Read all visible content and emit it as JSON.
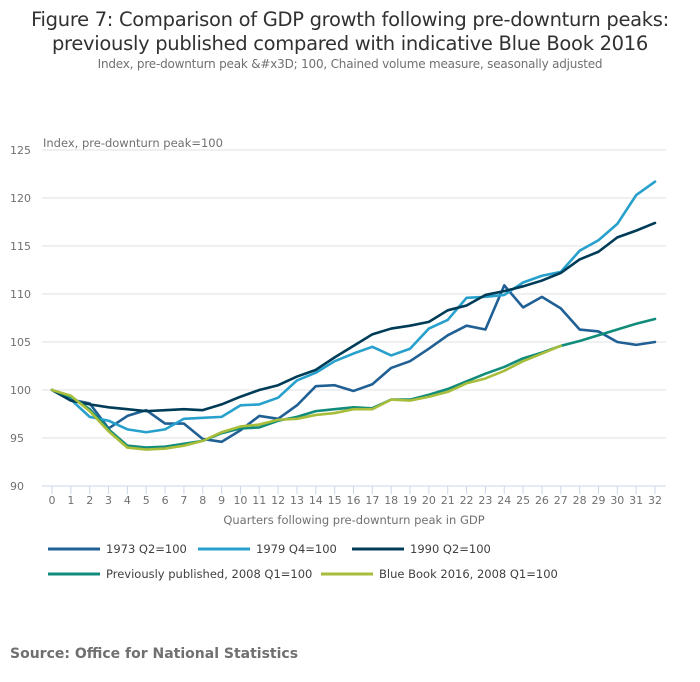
{
  "header": {
    "title_line1": "Figure 7: Comparison of GDP growth following pre-downturn peaks:",
    "title_line2": "previously published compared with indicative Blue Book 2016",
    "subtitle": "Index, pre-downturn peak &#x3D; 100, Chained volume measure, seasonally adjusted"
  },
  "footer": {
    "source": "Source: Office for National Statistics"
  },
  "chart_data": {
    "type": "line",
    "title": "Figure 7: Comparison of GDP growth following pre-downturn peaks: previously published compared with indicative Blue Book 2016",
    "subtitle": "Index, pre-downturn peak &#x3D; 100, Chained volume measure, seasonally adjusted",
    "xlabel": "Quarters following pre-downturn peak in GDP",
    "ylabel": "Index, pre-downturn peak=100",
    "ylim": [
      90,
      125
    ],
    "yticks": [
      90,
      95,
      100,
      105,
      110,
      115,
      120,
      125
    ],
    "x": [
      0,
      1,
      2,
      3,
      4,
      5,
      6,
      7,
      8,
      9,
      10,
      11,
      12,
      13,
      14,
      15,
      16,
      17,
      18,
      19,
      20,
      21,
      22,
      23,
      24,
      25,
      26,
      27,
      28,
      29,
      30,
      31,
      32
    ],
    "grid": true,
    "legend_position": "bottom",
    "series": [
      {
        "name": "1973 Q2=100",
        "color": "#206095",
        "values": [
          100,
          99.0,
          98.6,
          96.0,
          97.3,
          97.9,
          96.5,
          96.5,
          94.9,
          94.6,
          95.8,
          97.3,
          97.0,
          98.4,
          100.4,
          100.5,
          99.9,
          100.6,
          102.3,
          103.0,
          104.3,
          105.7,
          106.7,
          106.3,
          110.9,
          108.6,
          109.7,
          108.5,
          106.3,
          106.1,
          105.0,
          104.7,
          105.0
        ]
      },
      {
        "name": "1979 Q4=100",
        "color": "#27a0cc",
        "values": [
          100,
          99.0,
          97.2,
          96.8,
          95.9,
          95.6,
          95.9,
          97.0,
          97.1,
          97.2,
          98.4,
          98.5,
          99.2,
          101.0,
          101.8,
          103.0,
          103.8,
          104.5,
          103.6,
          104.3,
          106.4,
          107.3,
          109.6,
          109.7,
          109.9,
          111.2,
          111.9,
          112.3,
          114.5,
          115.6,
          117.3,
          120.3,
          121.7
        ]
      },
      {
        "name": "1990 Q2=100",
        "color": "#003c57",
        "values": [
          100,
          98.9,
          98.5,
          98.2,
          98.0,
          97.8,
          97.9,
          98.0,
          97.9,
          98.5,
          99.3,
          100.0,
          100.5,
          101.4,
          102.1,
          103.4,
          104.6,
          105.8,
          106.4,
          106.7,
          107.1,
          108.3,
          108.8,
          109.9,
          110.3,
          110.8,
          111.4,
          112.2,
          113.6,
          114.4,
          115.9,
          116.6,
          117.4
        ]
      },
      {
        "name": "Previously published, 2008 Q1=100",
        "color": "#118c7b",
        "values": [
          100,
          99.3,
          98.0,
          95.9,
          94.2,
          94.0,
          94.1,
          94.4,
          94.7,
          95.5,
          96.0,
          96.1,
          96.8,
          97.2,
          97.8,
          98.0,
          98.2,
          98.1,
          99.0,
          99.0,
          99.5,
          100.1,
          100.9,
          101.7,
          102.4,
          103.3,
          103.9,
          104.6,
          105.1,
          105.7,
          106.3,
          106.9,
          107.4
        ]
      },
      {
        "name": "Blue Book 2016, 2008 Q1=100",
        "color": "#a8bd3a",
        "values": [
          100,
          99.4,
          97.8,
          95.7,
          94.0,
          93.8,
          93.9,
          94.2,
          94.7,
          95.6,
          96.2,
          96.4,
          96.9,
          97.0,
          97.4,
          97.6,
          98.0,
          98.0,
          99.0,
          98.9,
          99.3,
          99.8,
          100.7,
          101.2,
          102.0,
          103.0,
          103.8,
          104.6
        ]
      }
    ]
  }
}
